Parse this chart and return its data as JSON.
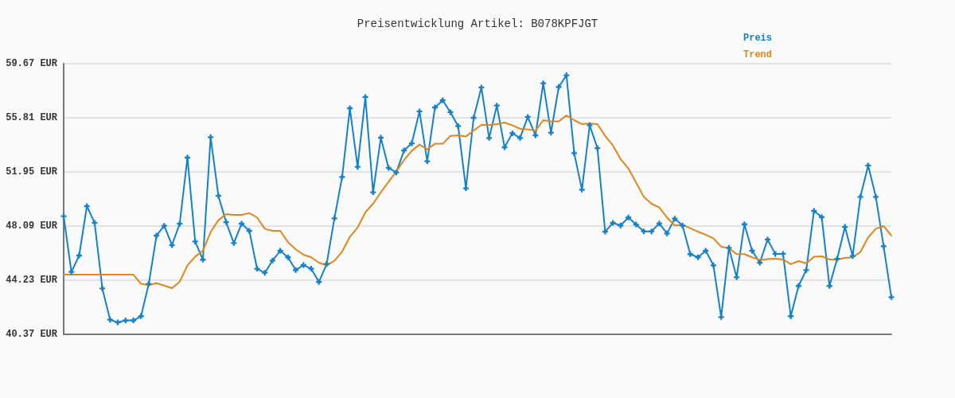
{
  "chart_data": {
    "type": "line",
    "title": "Preisentwicklung Artikel: B078KPFJGT",
    "categories": [
      null,
      null,
      null,
      null,
      null,
      null,
      null,
      null,
      null,
      null,
      null,
      null,
      null,
      null,
      null,
      null,
      null,
      null,
      null,
      null,
      null,
      null,
      null,
      null,
      null,
      null,
      null,
      null,
      null,
      null,
      null,
      null,
      null,
      null,
      null,
      null,
      null,
      null,
      null,
      null,
      null,
      null,
      null,
      null,
      null,
      null,
      null,
      null,
      null,
      null,
      null,
      null,
      null,
      null,
      null,
      null,
      null,
      null,
      null,
      null,
      null,
      null,
      null,
      null,
      null,
      null,
      null,
      null,
      null,
      null,
      null,
      null,
      null,
      null,
      null,
      null,
      null,
      null,
      null,
      null,
      null,
      null,
      null,
      null,
      null,
      null,
      null,
      null,
      null,
      null,
      null,
      null,
      null,
      null,
      null,
      null,
      null,
      null,
      null,
      null,
      null,
      null,
      null,
      null,
      null,
      null,
      null,
      null
    ],
    "series": [
      {
        "name": "Preis",
        "color": "#1581c9",
        "marker": "cross",
        "values": [
          48.79,
          44.82,
          45.99,
          49.51,
          48.32,
          43.64,
          41.41,
          41.22,
          41.36,
          41.36,
          41.66,
          43.97,
          47.41,
          48.11,
          46.73,
          48.26,
          52.97,
          46.99,
          45.69,
          54.43,
          50.25,
          48.37,
          46.88,
          48.26,
          47.75,
          45.05,
          44.76,
          45.63,
          46.33,
          45.86,
          44.95,
          45.31,
          45.05,
          44.1,
          45.39,
          48.64,
          51.59,
          56.49,
          52.31,
          57.29,
          50.5,
          54.39,
          52.24,
          51.91,
          53.48,
          53.99,
          56.27,
          52.71,
          56.55,
          57.06,
          56.21,
          55.22,
          50.78,
          55.81,
          57.97,
          54.37,
          56.68,
          53.71,
          54.71,
          54.37,
          55.87,
          54.56,
          58.27,
          54.75,
          58.01,
          58.84,
          53.29,
          50.68,
          55.28,
          53.65,
          47.69,
          48.32,
          48.13,
          48.7,
          48.2,
          47.71,
          47.71,
          48.28,
          47.56,
          48.62,
          48.13,
          46.09,
          45.86,
          46.33,
          45.29,
          41.6,
          46.54,
          44.44,
          48.22,
          46.33,
          45.48,
          47.13,
          46.11,
          46.11,
          41.66,
          43.82,
          44.95,
          49.17,
          48.73,
          43.82,
          45.76,
          48.03,
          45.95,
          50.17,
          52.41,
          50.17,
          46.65,
          43.02
        ]
      },
      {
        "name": "Trend",
        "color": "#e0861a",
        "values": [
          44.63,
          44.63,
          44.63,
          44.63,
          44.63,
          44.63,
          44.63,
          44.63,
          44.63,
          44.63,
          43.97,
          43.87,
          44.02,
          43.85,
          43.66,
          44.12,
          45.29,
          45.91,
          46.33,
          47.66,
          48.51,
          48.94,
          48.89,
          48.89,
          49.02,
          48.7,
          47.9,
          47.75,
          47.75,
          46.94,
          46.43,
          46.05,
          45.86,
          45.48,
          45.29,
          45.61,
          46.27,
          47.32,
          47.98,
          49.07,
          49.68,
          50.5,
          51.25,
          51.97,
          52.8,
          53.46,
          53.9,
          53.56,
          53.96,
          53.96,
          54.52,
          54.56,
          54.47,
          54.9,
          55.3,
          55.3,
          55.36,
          55.47,
          55.28,
          55.03,
          54.98,
          54.9,
          55.64,
          55.55,
          55.55,
          55.98,
          55.64,
          55.36,
          55.41,
          55.36,
          54.52,
          53.84,
          52.86,
          52.2,
          51.2,
          50.17,
          49.68,
          49.42,
          48.7,
          48.13,
          48.17,
          47.94,
          47.69,
          47.47,
          47.22,
          46.62,
          46.52,
          46.09,
          46.09,
          45.86,
          45.67,
          45.73,
          45.76,
          45.71,
          45.37,
          45.59,
          45.44,
          45.9,
          45.93,
          45.71,
          45.71,
          45.82,
          45.86,
          46.24,
          47.28,
          47.9,
          48.09,
          47.41
        ]
      }
    ],
    "ylim": [
      40.37,
      59.67
    ],
    "yticks": [
      {
        "value": 40.37,
        "label": "40.37 EUR"
      },
      {
        "value": 44.23,
        "label": "44.23 EUR"
      },
      {
        "value": 48.09,
        "label": "48.09 EUR"
      },
      {
        "value": 51.95,
        "label": "51.95 EUR"
      },
      {
        "value": 55.81,
        "label": "55.81 EUR"
      },
      {
        "value": 59.67,
        "label": "59.67 EUR"
      }
    ],
    "grid": "y",
    "legend": "top right",
    "line_style": "solid",
    "tick_labels": "y"
  }
}
